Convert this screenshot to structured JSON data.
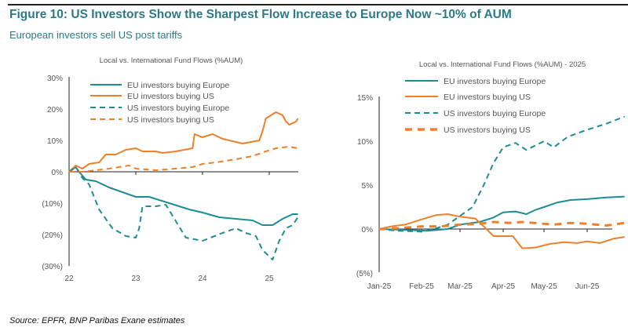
{
  "header": {
    "title": "Figure 10: US Investors Show the Sharpest Flow Increase to Europe Now ~10% of AUM",
    "subtitle": "European investors sell US post tariffs"
  },
  "footer": {
    "source": "Source:  EPFR, BNP Paribas Exane estimates"
  },
  "colors": {
    "teal": "#1e8c93",
    "orange": "#f07f2a",
    "title": "#2b7a86"
  },
  "chart_data": [
    {
      "type": "line",
      "title": "Local vs. International Fund Flows (%AUM)",
      "xlabel": "",
      "ylabel": "",
      "xticks": [
        {
          "v": 22,
          "label": "22"
        },
        {
          "v": 23,
          "label": "23"
        },
        {
          "v": 24,
          "label": "24"
        },
        {
          "v": 25,
          "label": "25"
        }
      ],
      "yticks": [
        {
          "v": 30,
          "label": "30%"
        },
        {
          "v": 20,
          "label": "20%"
        },
        {
          "v": 10,
          "label": "10%"
        },
        {
          "v": 0,
          "label": "0%"
        },
        {
          "v": -10,
          "label": "(10%)"
        },
        {
          "v": -20,
          "label": "(20%)"
        },
        {
          "v": -30,
          "label": "(30%)"
        }
      ],
      "xlim": [
        22,
        25.45
      ],
      "ylim": [
        -30,
        30
      ],
      "grid": false,
      "legend": "top-left",
      "series": [
        {
          "name": "EU investors buying Europe",
          "color": "teal",
          "style": "solid",
          "x": [
            22,
            22.1,
            22.15,
            22.25,
            22.4,
            22.6,
            22.8,
            23.0,
            23.2,
            23.5,
            23.8,
            24.0,
            24.25,
            24.5,
            24.75,
            24.9,
            25.05,
            25.2,
            25.35,
            25.43
          ],
          "y": [
            0,
            1.5,
            0,
            -2.5,
            -3,
            -5,
            -6.5,
            -8,
            -8,
            -10,
            -12,
            -13,
            -14.5,
            -15,
            -15.5,
            -17,
            -17,
            -15,
            -13.5,
            -13.5
          ]
        },
        {
          "name": "EU investors buying US",
          "color": "orange",
          "style": "solid",
          "x": [
            22,
            22.1,
            22.2,
            22.3,
            22.45,
            22.55,
            22.7,
            22.85,
            23.0,
            23.1,
            23.3,
            23.4,
            23.6,
            23.85,
            23.88,
            24.0,
            24.15,
            24.3,
            24.5,
            24.6,
            24.85,
            24.9,
            24.95,
            25.1,
            25.2,
            25.25,
            25.3,
            25.4,
            25.43
          ],
          "y": [
            0,
            2,
            1,
            2.5,
            3,
            5.5,
            5.5,
            7,
            7.5,
            6.5,
            6.5,
            6,
            6.5,
            7.5,
            12,
            11,
            12,
            10.5,
            9.5,
            9,
            10,
            13,
            17,
            19,
            18,
            16,
            15,
            16,
            17
          ]
        },
        {
          "name": "US investors buying Europe",
          "color": "teal",
          "style": "dashed",
          "x": [
            22,
            22.1,
            22.2,
            22.3,
            22.45,
            22.65,
            22.85,
            23.0,
            23.05,
            23.1,
            23.3,
            23.45,
            23.55,
            23.75,
            24.0,
            24.3,
            24.5,
            24.65,
            24.8,
            24.9,
            25.05,
            25.15,
            25.25,
            25.35,
            25.43
          ],
          "y": [
            0,
            1.5,
            -2,
            -4,
            -12,
            -18,
            -20.5,
            -21,
            -18,
            -11,
            -11,
            -10.5,
            -14,
            -21,
            -22,
            -19.5,
            -18,
            -19.5,
            -20.5,
            -25,
            -28,
            -22,
            -18,
            -17,
            -14.5
          ]
        },
        {
          "name": "US investors buying US",
          "color": "orange",
          "style": "dashed",
          "x": [
            22,
            22.2,
            22.4,
            22.6,
            22.9,
            23.0,
            23.3,
            23.6,
            23.85,
            24.0,
            24.2,
            24.5,
            24.75,
            24.95,
            25.1,
            25.3,
            25.43
          ],
          "y": [
            0,
            0,
            0.5,
            1,
            2,
            1,
            0.5,
            1,
            1.5,
            2.5,
            3,
            4,
            5,
            6.5,
            7.5,
            8,
            7.5
          ]
        }
      ]
    },
    {
      "type": "line",
      "title": "Local vs. International Fund Flows (%AUM) - 2025",
      "xlabel": "",
      "ylabel": "",
      "xticks": [
        {
          "v": "2025-01-01",
          "label": "Jan-25"
        },
        {
          "v": "2025-02-01",
          "label": "Feb-25"
        },
        {
          "v": "2025-03-01",
          "label": "Mar-25"
        },
        {
          "v": "2025-04-01",
          "label": "Apr-25"
        },
        {
          "v": "2025-05-01",
          "label": "May-25"
        },
        {
          "v": "2025-06-01",
          "label": "Jun-25"
        }
      ],
      "yticks": [
        {
          "v": 15,
          "label": "15%"
        },
        {
          "v": 10,
          "label": "10%"
        },
        {
          "v": 5,
          "label": "5%"
        },
        {
          "v": 0,
          "label": "0%"
        },
        {
          "v": -5,
          "label": "(5%)"
        }
      ],
      "xlim": [
        "2025-01-01",
        "2025-06-28"
      ],
      "ylim": [
        -5,
        15
      ],
      "grid": false,
      "legend": "top-left",
      "series": [
        {
          "name": "EU investors buying Europe",
          "color": "teal",
          "style": "solid",
          "x": [
            "2025-01-01",
            "2025-01-20",
            "2025-02-05",
            "2025-02-20",
            "2025-03-01",
            "2025-03-15",
            "2025-03-25",
            "2025-04-01",
            "2025-04-10",
            "2025-04-18",
            "2025-04-25",
            "2025-05-01",
            "2025-05-10",
            "2025-05-20",
            "2025-06-01",
            "2025-06-15",
            "2025-06-28"
          ],
          "y": [
            0,
            -0.1,
            -0.2,
            0,
            0.5,
            0.8,
            1.3,
            1.9,
            2.0,
            1.7,
            2.2,
            2.5,
            3.0,
            3.3,
            3.4,
            3.6,
            3.7
          ]
        },
        {
          "name": "EU investors buying US",
          "color": "orange",
          "style": "solid",
          "x": [
            "2025-01-01",
            "2025-01-10",
            "2025-01-20",
            "2025-02-01",
            "2025-02-12",
            "2025-02-20",
            "2025-03-01",
            "2025-03-12",
            "2025-03-18",
            "2025-03-25",
            "2025-04-01",
            "2025-04-08",
            "2025-04-15",
            "2025-04-25",
            "2025-05-05",
            "2025-05-15",
            "2025-05-25",
            "2025-06-01",
            "2025-06-10",
            "2025-06-20",
            "2025-06-28"
          ],
          "y": [
            0,
            0.3,
            0.5,
            1.1,
            1.6,
            1.7,
            1.4,
            1.2,
            0.3,
            -0.8,
            -0.8,
            -0.8,
            -2.2,
            -2.1,
            -1.7,
            -1.5,
            -1.6,
            -1.4,
            -1.6,
            -1.1,
            -0.9
          ]
        },
        {
          "name": "US investors buying Europe",
          "color": "teal",
          "style": "dashed",
          "x": [
            "2025-01-01",
            "2025-01-15",
            "2025-02-01",
            "2025-02-10",
            "2025-02-20",
            "2025-03-01",
            "2025-03-10",
            "2025-03-18",
            "2025-03-25",
            "2025-04-01",
            "2025-04-10",
            "2025-04-18",
            "2025-05-01",
            "2025-05-08",
            "2025-05-18",
            "2025-06-01",
            "2025-06-15",
            "2025-06-28"
          ],
          "y": [
            0,
            -0.2,
            -0.3,
            0,
            0.5,
            1.5,
            2.5,
            5,
            7.5,
            9.3,
            9.8,
            9,
            10,
            9.3,
            10.5,
            11.3,
            12,
            12.8
          ]
        },
        {
          "name": "US investors buying US",
          "color": "orange",
          "style": "thickdash",
          "x": [
            "2025-01-01",
            "2025-01-15",
            "2025-02-01",
            "2025-02-15",
            "2025-03-01",
            "2025-03-15",
            "2025-03-25",
            "2025-04-05",
            "2025-04-15",
            "2025-05-01",
            "2025-05-08",
            "2025-05-20",
            "2025-06-01",
            "2025-06-15",
            "2025-06-28"
          ],
          "y": [
            0,
            0.1,
            0.3,
            0.3,
            0.5,
            0.6,
            0.8,
            0.7,
            0.8,
            0.6,
            0.5,
            0.7,
            0.6,
            0.4,
            0.7
          ]
        }
      ]
    }
  ]
}
